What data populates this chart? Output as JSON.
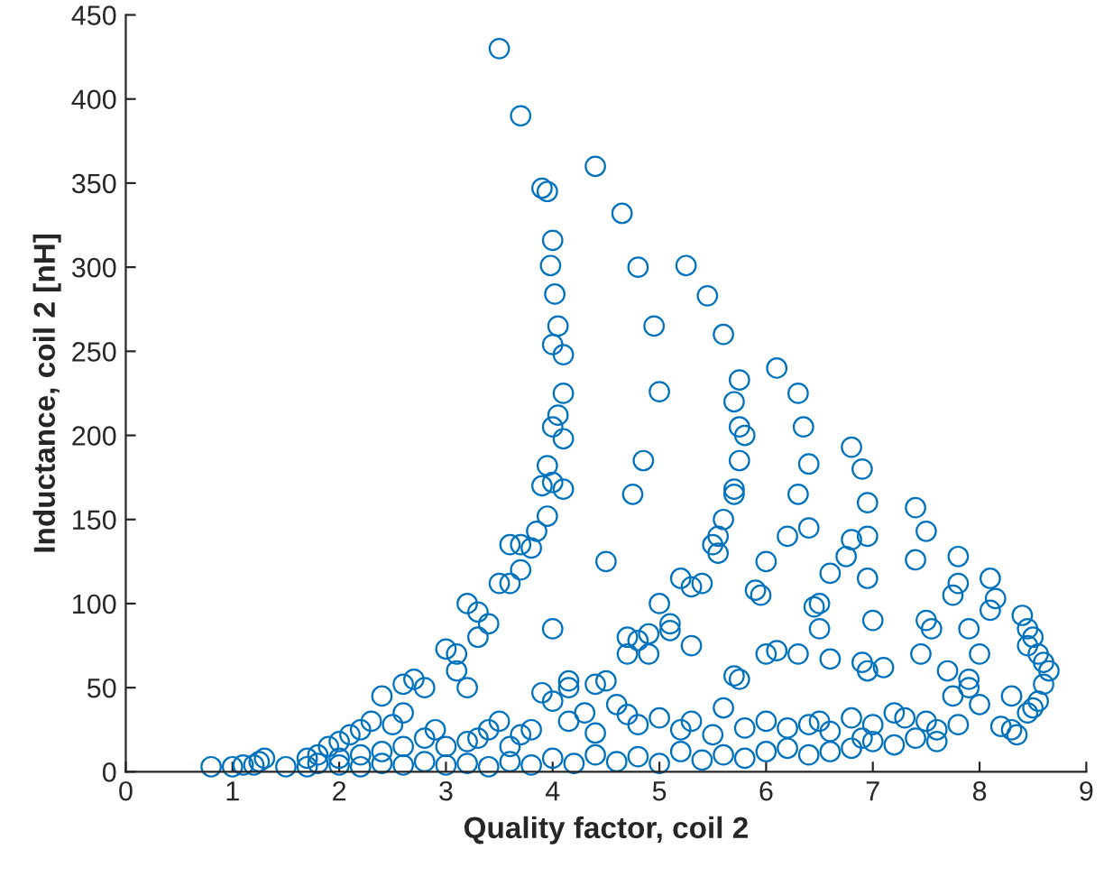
{
  "chart_data": {
    "type": "scatter",
    "xlabel": "Quality factor, coil 2",
    "ylabel": "Inductance, coil 2 [nH]",
    "xlim": [
      0,
      9
    ],
    "xticks": [
      0,
      1,
      2,
      3,
      4,
      5,
      6,
      7,
      8,
      9
    ],
    "ylim": [
      0,
      450
    ],
    "yticks": [
      0,
      50,
      100,
      150,
      200,
      250,
      300,
      350,
      400,
      450
    ],
    "grid": false,
    "marker": "circle",
    "series": [
      {
        "color": "#0072bd",
        "x": [
          3.5,
          3.7,
          3.9,
          3.95,
          4.0,
          3.98,
          4.02,
          4.05,
          4.0,
          4.1,
          4.1,
          4.05,
          4.0,
          4.1,
          3.95,
          4.0,
          3.9,
          4.1,
          3.95,
          3.85,
          3.8,
          3.6,
          3.7,
          3.5,
          3.6,
          3.7,
          3.2,
          3.3,
          3.4,
          3.3,
          3.1,
          3.0,
          3.1,
          3.2,
          2.8,
          2.7,
          2.6,
          2.4,
          2.6,
          2.5,
          2.3,
          2.2,
          2.1,
          2.0,
          1.9,
          1.8,
          1.7,
          1.3,
          1.25,
          1.2,
          1.1,
          1.0,
          0.8,
          4.0,
          4.15,
          4.15,
          4.4,
          4.65,
          4.8,
          4.95,
          5.0,
          4.85,
          4.75,
          4.5,
          4.5,
          4.4,
          5.25,
          5.45,
          5.6,
          5.75,
          5.7,
          5.75,
          5.8,
          5.75,
          5.7,
          5.7,
          5.6,
          5.55,
          5.5,
          5.55,
          5.2,
          5.3,
          5.4,
          5.0,
          5.3,
          5.1,
          5.1,
          4.8,
          4.9,
          4.7,
          4.7,
          4.9,
          5.9,
          5.7,
          5.75,
          6.1,
          6.3,
          6.35,
          6.4,
          6.3,
          6.2,
          6.4,
          6.0,
          5.95,
          6.45,
          6.5,
          6.3,
          6.0,
          6.1,
          6.5,
          6.6,
          6.8,
          6.9,
          6.95,
          6.8,
          6.75,
          6.95,
          6.95,
          6.6,
          7.0,
          7.1,
          6.9,
          6.95,
          7.4,
          7.5,
          7.4,
          7.75,
          7.8,
          7.8,
          7.55,
          7.5,
          7.45,
          7.9,
          8.1,
          8.15,
          8.1,
          8.4,
          8.45,
          8.5,
          8.45,
          8.55,
          8.6,
          8.65,
          8.6,
          8.55,
          8.5,
          8.45,
          8.3,
          8.0,
          7.7,
          7.9,
          8.2,
          8.3,
          8.35,
          7.75,
          7.9,
          8.0,
          7.5,
          7.8,
          7.3,
          7.6,
          7.0,
          7.2,
          6.8,
          6.9,
          6.6,
          6.5,
          6.4,
          6.2,
          6.0,
          5.8,
          5.6,
          5.5,
          5.3,
          5.2,
          5.0,
          4.8,
          4.7,
          4.6,
          4.4,
          4.3,
          4.15,
          3.9,
          4.0,
          3.8,
          3.7,
          3.6,
          3.5,
          3.4,
          3.3,
          3.2,
          3.0,
          2.9,
          2.8,
          2.6,
          2.4,
          2.2,
          2.0,
          1.8,
          1.5,
          1.7,
          2.0,
          2.2,
          2.4,
          2.6,
          2.8,
          3.0,
          3.2,
          3.4,
          3.6,
          3.8,
          4.0,
          4.2,
          4.4,
          4.6,
          4.8,
          5.0,
          5.2,
          5.4,
          5.6,
          5.8,
          6.0,
          6.2,
          6.4,
          6.6,
          6.8,
          7.0,
          7.2,
          7.4,
          7.6
        ],
        "values": [
          430,
          390,
          347,
          345,
          316,
          301,
          284,
          265,
          254,
          248,
          225,
          212,
          205,
          198,
          182,
          172,
          170,
          168,
          152,
          143,
          133,
          135,
          135,
          112,
          112,
          120,
          100,
          95,
          88,
          80,
          70,
          73,
          60,
          50,
          50,
          55,
          52,
          45,
          35,
          28,
          30,
          25,
          22,
          18,
          15,
          10,
          8,
          8,
          6,
          4,
          4,
          3,
          3,
          85,
          54,
          50,
          360,
          332,
          300,
          265,
          226,
          185,
          165,
          125,
          54,
          52,
          301,
          283,
          260,
          233,
          220,
          205,
          200,
          185,
          168,
          165,
          150,
          140,
          135,
          130,
          115,
          110,
          112,
          100,
          75,
          88,
          84,
          78,
          82,
          80,
          70,
          70,
          108,
          57,
          55,
          240,
          225,
          205,
          183,
          165,
          140,
          145,
          125,
          105,
          98,
          100,
          70,
          70,
          72,
          85,
          67,
          193,
          180,
          160,
          138,
          128,
          140,
          115,
          118,
          90,
          62,
          65,
          60,
          157,
          143,
          126,
          105,
          112,
          128,
          85,
          90,
          70,
          85,
          115,
          103,
          96,
          93,
          85,
          80,
          75,
          70,
          65,
          60,
          52,
          42,
          38,
          35,
          45,
          70,
          60,
          50,
          27,
          25,
          22,
          45,
          55,
          40,
          30,
          28,
          32,
          25,
          28,
          35,
          32,
          20,
          24,
          30,
          28,
          26,
          30,
          26,
          38,
          22,
          30,
          25,
          32,
          28,
          34,
          40,
          23,
          35,
          30,
          47,
          42,
          25,
          22,
          15,
          30,
          25,
          20,
          18,
          15,
          25,
          20,
          15,
          12,
          10,
          8,
          5,
          3,
          3,
          4,
          3,
          5,
          4,
          6,
          4,
          5,
          3,
          6,
          4,
          8,
          5,
          10,
          6,
          9,
          5,
          12,
          7,
          10,
          8,
          12,
          14,
          10,
          12,
          14,
          18,
          16,
          20,
          18
        ]
      }
    ]
  }
}
